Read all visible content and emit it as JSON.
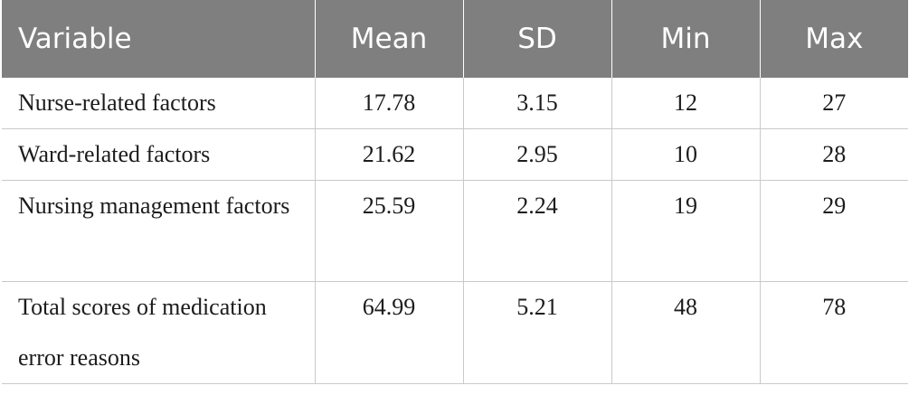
{
  "table": {
    "headers": [
      "Variable",
      "Mean",
      "SD",
      "Min",
      "Max"
    ],
    "rows": [
      {
        "variable": "Nurse-related factors",
        "mean": "17.78",
        "sd": "3.15",
        "min": "12",
        "max": "27"
      },
      {
        "variable": "Ward-related factors",
        "mean": "21.62",
        "sd": "2.95",
        "min": "10",
        "max": "28"
      },
      {
        "variable": "Nursing management factors",
        "mean": "25.59",
        "sd": "2.24",
        "min": "19",
        "max": "29"
      },
      {
        "variable": "Total scores of medication error reasons",
        "mean": "64.99",
        "sd": "5.21",
        "min": "48",
        "max": "78"
      }
    ]
  },
  "colors": {
    "header_bg": "#7e7f7e",
    "header_text": "#ffffff",
    "border": "#c9c9c9",
    "body_text": "#1c1c1c"
  }
}
